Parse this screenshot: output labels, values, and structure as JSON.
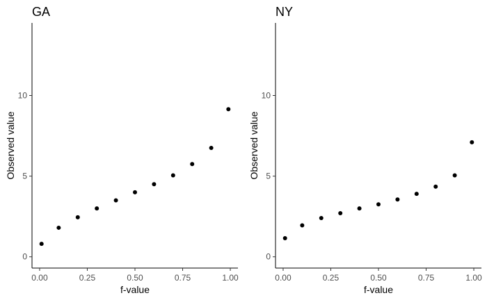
{
  "chart_data": [
    {
      "type": "scatter",
      "title": "GA",
      "xlabel": "f-value",
      "ylabel": "Observed value",
      "xlim": [
        -0.04,
        1.04
      ],
      "ylim": [
        -0.7,
        14.5
      ],
      "xticks": [
        0.0,
        0.25,
        0.5,
        0.75,
        1.0
      ],
      "xtick_labels": [
        "0.00",
        "0.25",
        "0.50",
        "0.75",
        "1.00"
      ],
      "yticks": [
        0,
        5,
        10
      ],
      "ytick_labels": [
        "0",
        "5",
        "10"
      ],
      "grid": false,
      "x": [
        0.01,
        0.1,
        0.2,
        0.3,
        0.4,
        0.5,
        0.6,
        0.7,
        0.8,
        0.9,
        0.99
      ],
      "y": [
        0.8,
        1.8,
        2.45,
        3.0,
        3.5,
        4.0,
        4.5,
        5.05,
        5.75,
        6.75,
        9.15
      ]
    },
    {
      "type": "scatter",
      "title": "NY",
      "xlabel": "f-value",
      "ylabel": "Observed value",
      "xlim": [
        -0.04,
        1.04
      ],
      "ylim": [
        -0.7,
        14.5
      ],
      "xticks": [
        0.0,
        0.25,
        0.5,
        0.75,
        1.0
      ],
      "xtick_labels": [
        "0.00",
        "0.25",
        "0.50",
        "0.75",
        "1.00"
      ],
      "yticks": [
        0,
        5,
        10
      ],
      "ytick_labels": [
        "0",
        "5",
        "10"
      ],
      "grid": false,
      "x": [
        0.01,
        0.1,
        0.2,
        0.3,
        0.4,
        0.5,
        0.6,
        0.7,
        0.8,
        0.9,
        0.99
      ],
      "y": [
        1.15,
        1.95,
        2.4,
        2.7,
        3.0,
        3.25,
        3.55,
        3.9,
        4.35,
        5.05,
        7.1
      ]
    }
  ]
}
